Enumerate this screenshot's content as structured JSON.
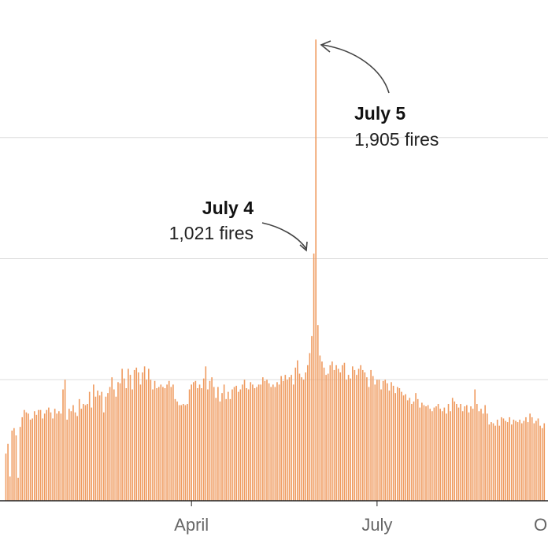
{
  "chart_data": {
    "type": "bar",
    "title": "",
    "xlabel": "",
    "ylabel": "",
    "ylim": [
      0,
      2000
    ],
    "yticks": [
      500,
      1000,
      1500
    ],
    "grid": true,
    "bar_color": "#ef9a5e",
    "x_tick_labels": [
      "April",
      "July",
      "October"
    ],
    "x_tick_day_index": [
      88,
      179,
      271
    ],
    "first_day_index": -3,
    "values": [
      195,
      235,
      100,
      290,
      300,
      270,
      95,
      305,
      345,
      375,
      365,
      360,
      335,
      340,
      370,
      355,
      375,
      375,
      340,
      360,
      375,
      385,
      365,
      340,
      380,
      360,
      370,
      360,
      460,
      500,
      335,
      380,
      370,
      395,
      365,
      350,
      420,
      380,
      400,
      395,
      400,
      450,
      385,
      480,
      430,
      455,
      435,
      450,
      365,
      430,
      445,
      470,
      510,
      460,
      430,
      490,
      485,
      545,
      505,
      465,
      545,
      520,
      460,
      540,
      550,
      530,
      480,
      530,
      555,
      500,
      545,
      500,
      460,
      495,
      465,
      470,
      480,
      470,
      465,
      480,
      495,
      470,
      480,
      420,
      410,
      395,
      395,
      400,
      395,
      400,
      460,
      480,
      490,
      495,
      465,
      480,
      465,
      505,
      555,
      460,
      495,
      510,
      470,
      425,
      470,
      410,
      445,
      480,
      420,
      450,
      420,
      460,
      470,
      475,
      450,
      460,
      480,
      500,
      465,
      460,
      490,
      480,
      465,
      470,
      480,
      480,
      510,
      495,
      500,
      485,
      470,
      480,
      470,
      490,
      480,
      515,
      495,
      520,
      500,
      510,
      520,
      480,
      550,
      580,
      525,
      510,
      500,
      530,
      560,
      610,
      680,
      1021,
      1905,
      725,
      600,
      575,
      550,
      520,
      525,
      560,
      575,
      540,
      560,
      545,
      530,
      560,
      570,
      500,
      520,
      505,
      555,
      540,
      520,
      545,
      560,
      540,
      530,
      510,
      470,
      540,
      515,
      480,
      500,
      500,
      460,
      495,
      500,
      485,
      455,
      490,
      475,
      445,
      470,
      465,
      450,
      435,
      440,
      415,
      425,
      400,
      410,
      445,
      420,
      385,
      405,
      395,
      390,
      395,
      380,
      370,
      385,
      390,
      400,
      380,
      370,
      385,
      360,
      400,
      370,
      425,
      410,
      400,
      385,
      400,
      370,
      390,
      395,
      365,
      390,
      380,
      460,
      400,
      370,
      380,
      360,
      395,
      360,
      315,
      325,
      320,
      310,
      335,
      310,
      345,
      340,
      330,
      325,
      345,
      315,
      335,
      330,
      325,
      335,
      320,
      330,
      345,
      325,
      360,
      345,
      320,
      330,
      340,
      310,
      300,
      320
    ],
    "annotations": [
      {
        "title": "July 5",
        "text": "1,905 fires",
        "day_index": 152,
        "value": 1905
      },
      {
        "title": "July 4",
        "text": "1,021 fires",
        "day_index": 151,
        "value": 1021
      }
    ]
  }
}
